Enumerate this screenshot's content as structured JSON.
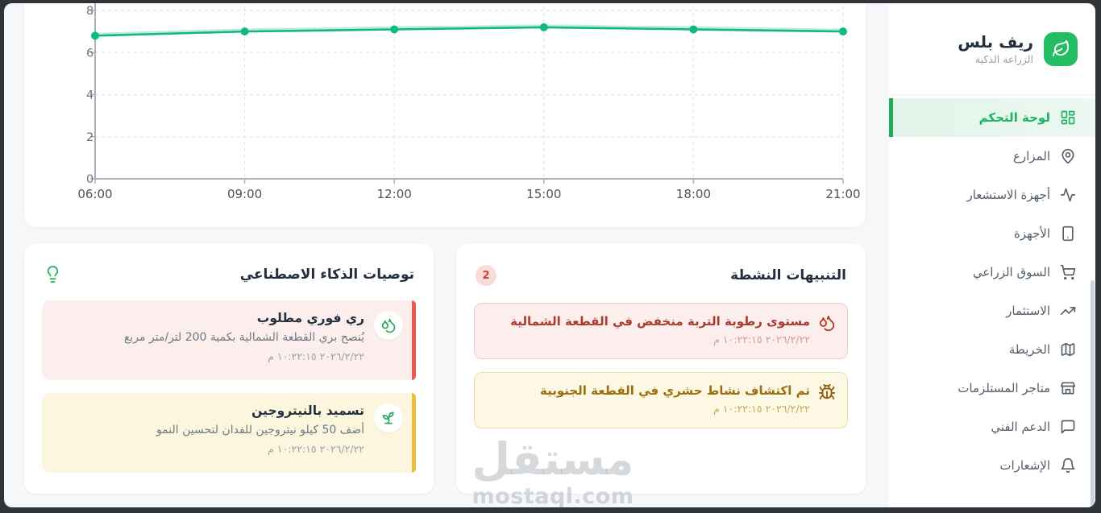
{
  "brand": {
    "title": "ريف بلس",
    "subtitle": "الزراعة الذكية",
    "logo_icon": "leaf"
  },
  "sidebar": {
    "items": [
      {
        "label": "لوحة التحكم",
        "icon": "layout-dashboard",
        "active": true
      },
      {
        "label": "المزارع",
        "icon": "map-pin",
        "active": false
      },
      {
        "label": "أجهزة الاستشعار",
        "icon": "activity",
        "active": false
      },
      {
        "label": "الأجهزة",
        "icon": "smartphone",
        "active": false
      },
      {
        "label": "السوق الزراعي",
        "icon": "shopping-cart",
        "active": false
      },
      {
        "label": "الاستثمار",
        "icon": "trending-up",
        "active": false
      },
      {
        "label": "الخريطة",
        "icon": "map",
        "active": false
      },
      {
        "label": "متاجر المستلزمات",
        "icon": "store",
        "active": false
      },
      {
        "label": "الدعم الفني",
        "icon": "message-square",
        "active": false
      },
      {
        "label": "الإشعارات",
        "icon": "bell",
        "active": false
      }
    ]
  },
  "chart_data": {
    "type": "line",
    "x": [
      "06:00",
      "09:00",
      "12:00",
      "15:00",
      "18:00",
      "21:00"
    ],
    "series": [
      {
        "name": "sensor-reading",
        "values": [
          6.8,
          7.0,
          7.1,
          7.2,
          7.1,
          7.0
        ],
        "color": "#10b981"
      }
    ],
    "ylim": [
      0,
      8
    ],
    "yticks": [
      0,
      2,
      4,
      6,
      8
    ],
    "grid": "dashed",
    "legend": "none",
    "title": ""
  },
  "recommendations": {
    "title": "توصيات الذكاء الاصطناعي",
    "header_icon": "lightbulb",
    "items": [
      {
        "title": "ري فوري مطلوب",
        "description": "يُنصح بري القطعة الشمالية بكمية 200 لتر/متر مربع",
        "time": "٢٠٢٦/٢/٢٢ ١٠:٢٢:١٥ م",
        "icon": "droplets",
        "severity": "high",
        "accent_color": "#ec5b50",
        "bg_color": "#fdeeee",
        "icon_color": "#22a95c"
      },
      {
        "title": "تسميد بالنيتروجين",
        "description": "أضف 50 كيلو نيتروجين للفدان لتحسين النمو",
        "time": "٢٠٢٦/٢/٢٢ ١٠:٢٢:١٥ م",
        "icon": "sprout",
        "severity": "medium",
        "accent_color": "#eebc3f",
        "bg_color": "#fcf6df",
        "icon_color": "#22a95c"
      }
    ]
  },
  "alerts": {
    "title": "التنبيهات النشطة",
    "count": "2",
    "items": [
      {
        "text": "مستوى رطوبة التربة منخفض في القطعة الشمالية",
        "time": "٢٠٢٦/٢/٢٢ ١٠:٢٢:١٥ م",
        "icon": "droplets",
        "type": "danger",
        "bg_color": "#fdeeee",
        "border_color": "#f3caca",
        "text_color": "#a93a2e",
        "time_color": "#d29b94",
        "icon_color": "#b23a2c"
      },
      {
        "text": "تم اكتشاف نشاط حشري في القطعة الجنوبية",
        "time": "٢٠٢٦/٢/٢٢ ١٠:٢٢:١٥ م",
        "icon": "bug",
        "type": "warning",
        "bg_color": "#fdf8e3",
        "border_color": "#ecdfa9",
        "text_color": "#9b6e12",
        "time_color": "#c9aa61",
        "icon_color": "#8f5e0a"
      }
    ]
  },
  "watermark": {
    "arabic": "مستقل",
    "domain": "mostaql.com"
  },
  "colors": {
    "accent_green": "#23bd63",
    "chart_line": "#10b981",
    "page_bg": "#f5f7f9",
    "card_bg": "#ffffff",
    "sidebar_active_bg": "#e8f6ee",
    "frame": "#303338"
  }
}
